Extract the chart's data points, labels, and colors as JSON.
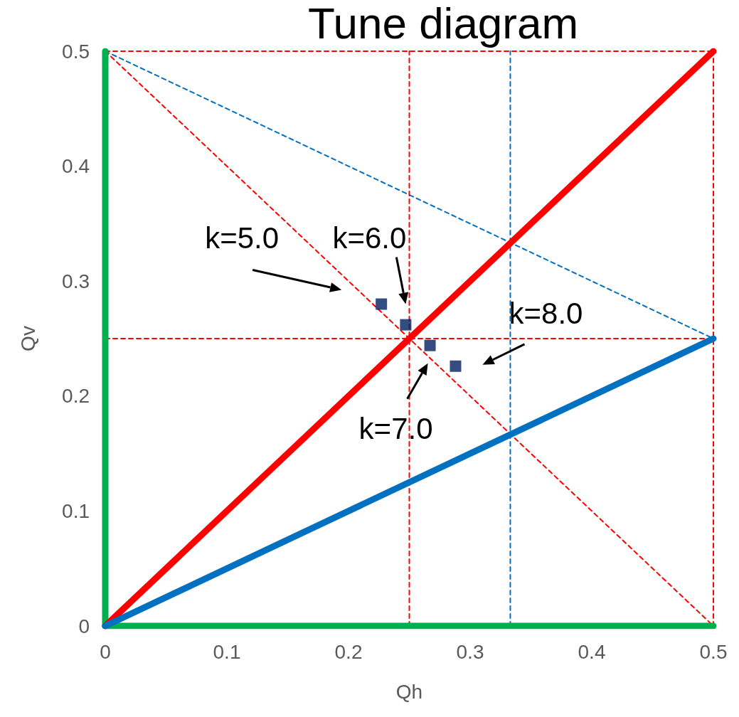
{
  "chart_data": {
    "type": "scatter",
    "title": "Tune diagram",
    "xlabel": "Qh",
    "ylabel": "Qv",
    "xlim": [
      0,
      0.5
    ],
    "ylim": [
      0,
      0.5
    ],
    "xticks": [
      0,
      0.1,
      0.2,
      0.3,
      0.4,
      0.5
    ],
    "yticks": [
      0,
      0.1,
      0.2,
      0.3,
      0.4,
      0.5
    ],
    "grid": false,
    "series": [
      {
        "type": "line",
        "color": "#00b050",
        "x": [
          0,
          0
        ],
        "values": [
          0,
          0.5
        ],
        "line_style": "solid",
        "marker": "none"
      },
      {
        "type": "line",
        "color": "#00b050",
        "x": [
          0,
          0.5
        ],
        "values": [
          0,
          0
        ],
        "line_style": "solid",
        "marker": "none"
      },
      {
        "type": "line",
        "color": "#ff0000",
        "x": [
          0,
          0.5
        ],
        "values": [
          0,
          0.5
        ],
        "line_style": "solid",
        "marker": "none"
      },
      {
        "type": "line",
        "color": "#0070c0",
        "x": [
          0,
          0.5
        ],
        "values": [
          0,
          0.25
        ],
        "line_style": "solid",
        "marker": "none"
      },
      {
        "type": "line",
        "color": "#ff0000",
        "x": [
          0,
          0.5
        ],
        "values": [
          0.5,
          0
        ],
        "line_style": "dashed",
        "marker": "none"
      },
      {
        "type": "line",
        "color": "#0070c0",
        "x": [
          0,
          0.5
        ],
        "values": [
          0.5,
          0.25
        ],
        "line_style": "dashed",
        "marker": "none"
      },
      {
        "type": "line",
        "color": "#ff0000",
        "x": [
          0,
          0.5
        ],
        "values": [
          0.5,
          0.5
        ],
        "line_style": "dashed",
        "marker": "none"
      },
      {
        "type": "line",
        "color": "#ff0000",
        "x": [
          0.5,
          0.5
        ],
        "values": [
          0,
          0.5
        ],
        "line_style": "dashed",
        "marker": "none"
      },
      {
        "type": "line",
        "color": "#ff0000",
        "x": [
          0.25,
          0.25
        ],
        "values": [
          0,
          0.5
        ],
        "line_style": "dashed",
        "marker": "none"
      },
      {
        "type": "line",
        "color": "#ff0000",
        "x": [
          0,
          0.5
        ],
        "values": [
          0.25,
          0.25
        ],
        "line_style": "dashed",
        "marker": "none"
      },
      {
        "type": "line",
        "color": "#0070c0",
        "x": [
          0.333,
          0.333
        ],
        "values": [
          0,
          0.5
        ],
        "line_style": "dashed",
        "marker": "none"
      },
      {
        "color": "#002060",
        "x": [
          0.227,
          0.247,
          0.267,
          0.288
        ],
        "values": [
          0.28,
          0.262,
          0.244,
          0.226
        ],
        "marker": "square"
      }
    ],
    "annotations": [
      "k=5.0",
      "k=6.0",
      "k=7.0",
      "k=8.0"
    ]
  }
}
